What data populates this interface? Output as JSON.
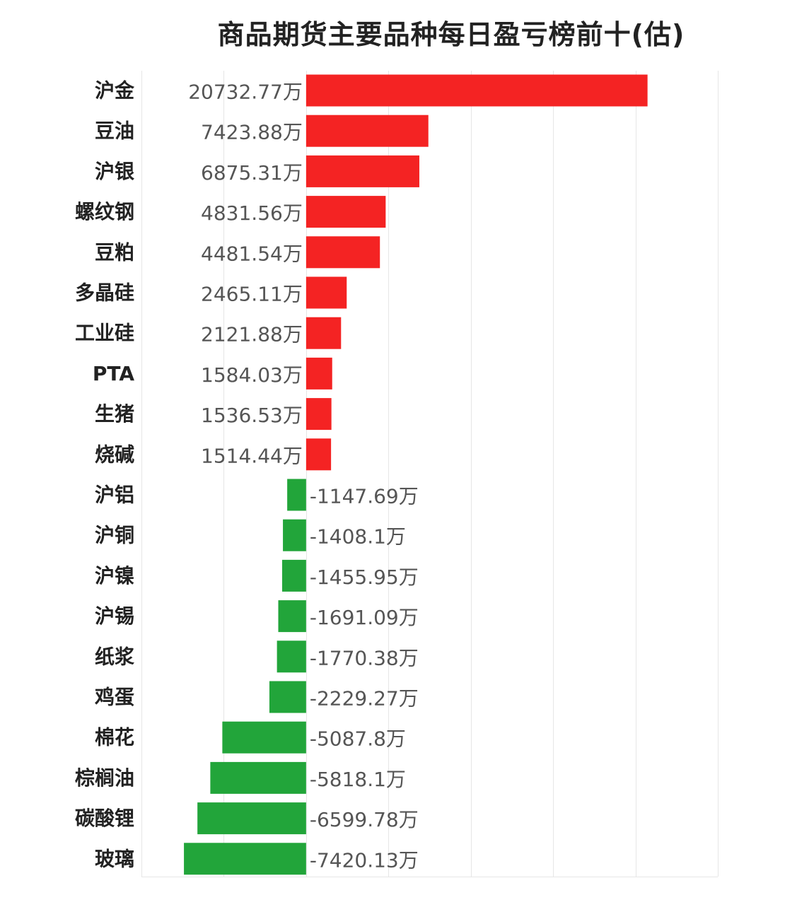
{
  "chart_data": {
    "type": "bar",
    "orientation": "horizontal",
    "title": "商品期货主要品种每日盈亏榜前十(估)",
    "unit_suffix": "万",
    "categories": [
      "沪金",
      "豆油",
      "沪银",
      "螺纹钢",
      "豆粕",
      "多晶硅",
      "工业硅",
      "PTA",
      "生猪",
      "烧碱",
      "沪铝",
      "沪铜",
      "沪镍",
      "沪锡",
      "纸浆",
      "鸡蛋",
      "棉花",
      "棕榈油",
      "碳酸锂",
      "玻璃"
    ],
    "values": [
      20732.77,
      7423.88,
      6875.31,
      4831.56,
      4481.54,
      2465.11,
      2121.88,
      1584.03,
      1536.53,
      1514.44,
      -1147.69,
      -1408.1,
      -1455.95,
      -1691.09,
      -1770.38,
      -2229.27,
      -5087.8,
      -5818.1,
      -6599.78,
      -7420.13
    ],
    "labels": [
      "20732.77万",
      "7423.88万",
      "6875.31万",
      "4831.56万",
      "4481.54万",
      "2465.11万",
      "2121.88万",
      "1584.03万",
      "1536.53万",
      "1514.44万",
      "-1147.69万",
      "-1408.1万",
      "-1455.95万",
      "-1691.09万",
      "-1770.38万",
      "-2229.27万",
      "-5087.8万",
      "-5818.1万",
      "-6599.78万",
      "-7420.13万"
    ],
    "xlim": [
      -10000,
      25000
    ],
    "grid_x_ticks": [
      -10000,
      -5000,
      0,
      5000,
      10000,
      15000,
      20000,
      25000
    ],
    "grid": true,
    "x_tick_labels_shown": false,
    "colors": {
      "positive": "#f42323",
      "negative": "#22a53a",
      "gridline": "#e6e6e6",
      "label_text": "#555555",
      "category_text": "#222222"
    }
  }
}
